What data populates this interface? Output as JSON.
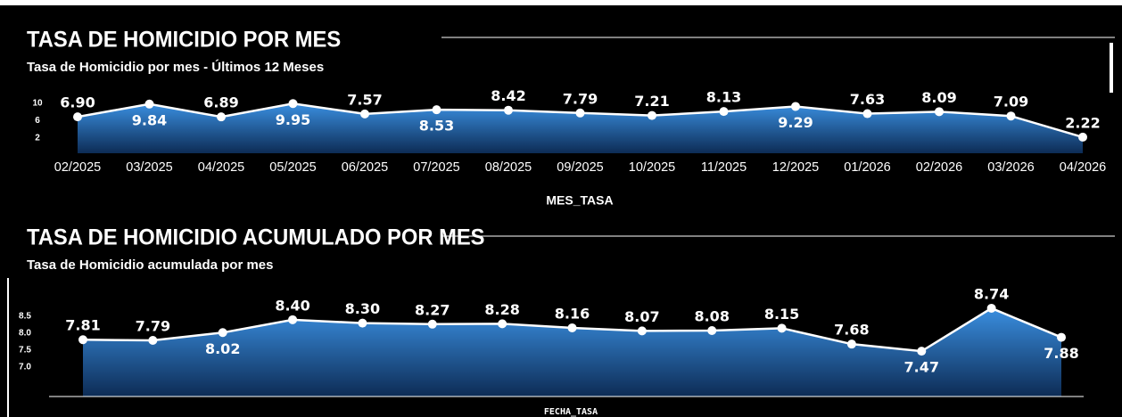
{
  "chart_data": [
    {
      "type": "area",
      "title": "TASA DE HOMICIDIO POR MES",
      "subtitle": "Tasa de Homicidio por mes - Últimos 12 Meses",
      "x_label": "MES_TASA",
      "categories": [
        "02/2025",
        "03/2025",
        "04/2025",
        "05/2025",
        "06/2025",
        "07/2025",
        "08/2025",
        "09/2025",
        "10/2025",
        "11/2025",
        "12/2025",
        "01/2026",
        "02/2026",
        "03/2026",
        "04/2026"
      ],
      "values": [
        6.9,
        9.84,
        6.89,
        9.95,
        7.57,
        8.53,
        8.42,
        7.79,
        7.21,
        8.13,
        9.29,
        7.63,
        8.09,
        7.09,
        2.22
      ],
      "value_labels": [
        "6.90",
        "9.84",
        "6.89",
        "9.95",
        "7.57",
        "8.53",
        "8.42",
        "7.79",
        "7.21",
        "8.13",
        "9.29",
        "7.63",
        "8.09",
        "7.09",
        "2.22"
      ],
      "color": "#3a8fe0",
      "ylim": [
        -1.49,
        12.26
      ],
      "yticks": [
        10,
        6,
        2
      ]
    },
    {
      "type": "area",
      "title": "TASA DE HOMICIDIO ACUMULADO POR MES",
      "subtitle": "Tasa de Homicidio acumulada por mes",
      "x_label": "FECHA_TASA",
      "values": [
        7.81,
        7.79,
        8.02,
        8.4,
        8.3,
        8.27,
        8.28,
        8.16,
        8.07,
        8.08,
        8.15,
        7.68,
        7.47,
        8.74,
        7.88
      ],
      "value_labels": [
        "7.81",
        "7.79",
        "8.02",
        "8.40",
        "8.30",
        "8.27",
        "8.28",
        "8.16",
        "8.07",
        "8.08",
        "8.15",
        "7.68",
        "7.47",
        "8.74",
        "7.88"
      ],
      "color": "#3a8fe0",
      "ylim": [
        6.13,
        9.16
      ],
      "yticks": [
        8.5,
        {
          "value": 8,
          "label": "8.0"
        },
        7.5,
        {
          "value": 7,
          "label": "7.0"
        }
      ]
    }
  ]
}
